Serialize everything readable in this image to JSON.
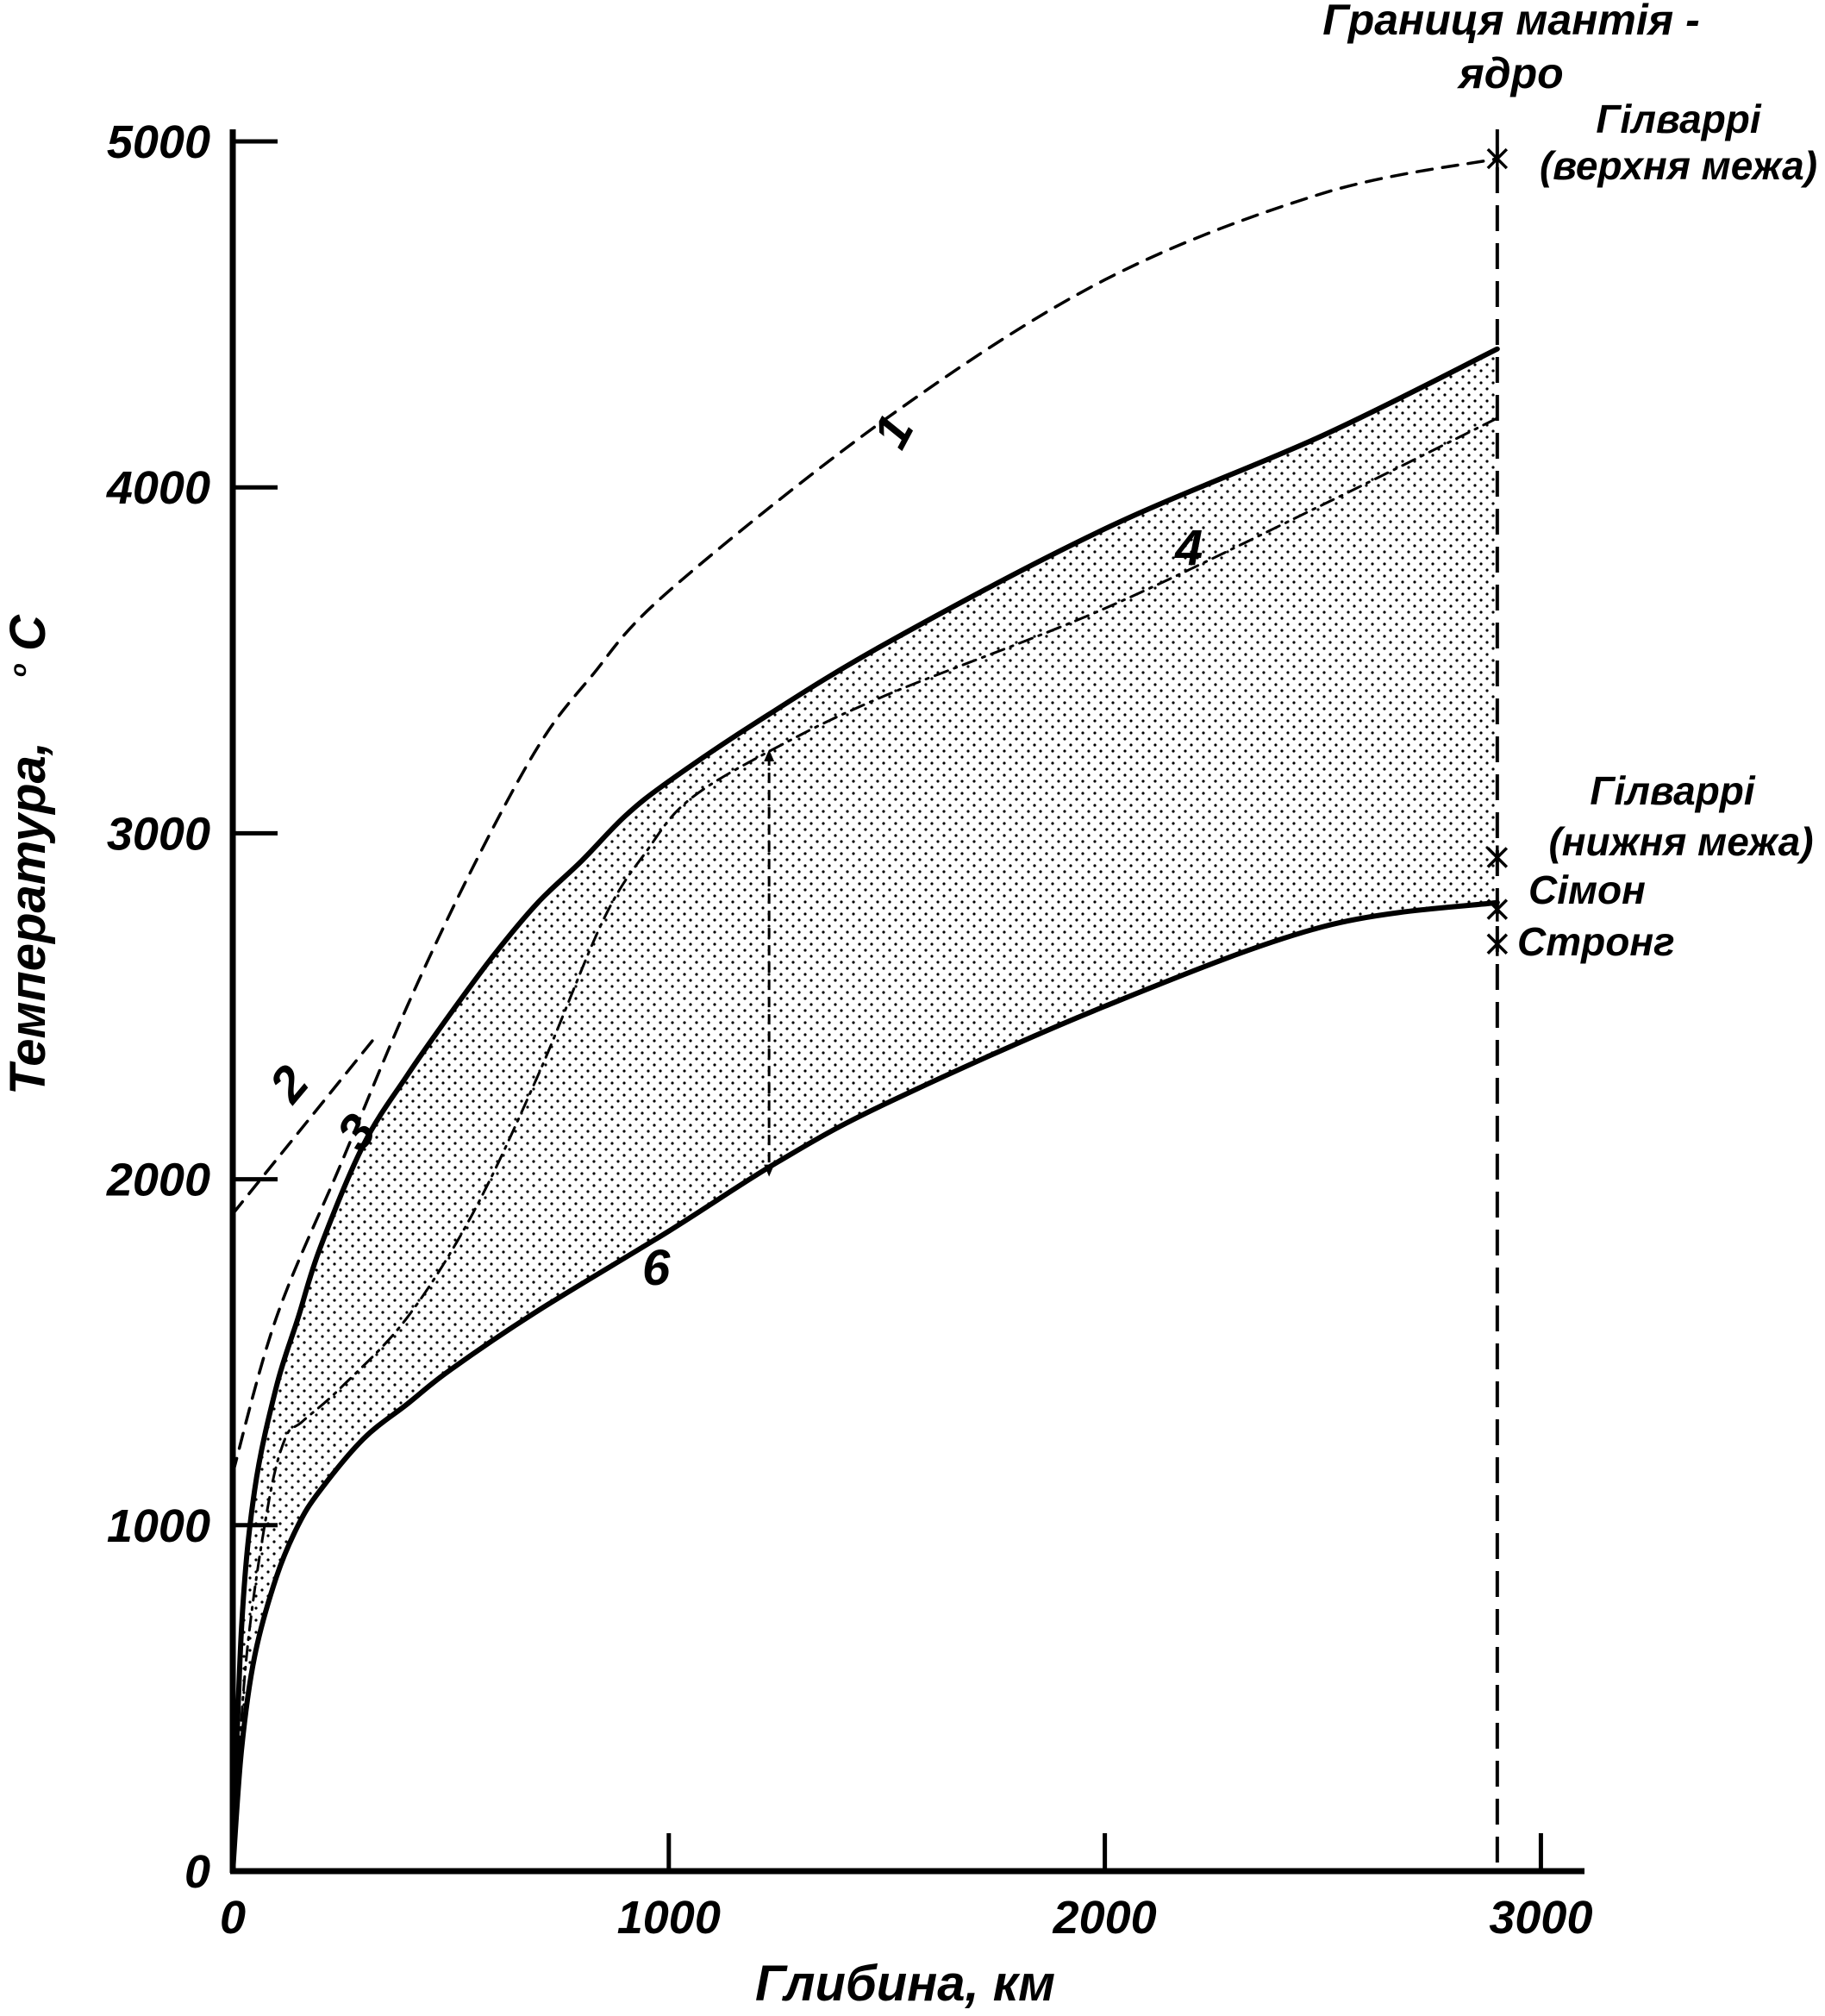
{
  "chart_data": {
    "type": "line",
    "title": "",
    "xlabel": "Глибина, км",
    "ylabel": "Температура, °С",
    "ylabel_main": "Температура,",
    "ylabel_degree": "о",
    "ylabel_unit": "С",
    "xlim": [
      0,
      3100
    ],
    "ylim": [
      0,
      5000
    ],
    "x_ticks": [
      0,
      1000,
      2000,
      3000
    ],
    "x_tick_labels": [
      "0",
      "1000",
      "2000",
      "3000"
    ],
    "y_ticks": [
      0,
      1000,
      2000,
      3000,
      4000,
      5000
    ],
    "y_tick_labels": [
      "0",
      "1000",
      "2000",
      "3000",
      "4000",
      "5000"
    ],
    "grid": false,
    "boundary_depth": 2900,
    "shaded_region": {
      "between": [
        "3",
        "6"
      ]
    },
    "series": [
      {
        "name": "1",
        "style": "dashed",
        "x": [
          0,
          100,
          250,
          400,
          550,
          700,
          820,
          1000,
          1500,
          2000,
          2500,
          2900
        ],
        "y": [
          1150,
          1600,
          2050,
          2500,
          2900,
          3250,
          3450,
          3700,
          4200,
          4600,
          4850,
          4950
        ]
      },
      {
        "name": "2",
        "style": "dashed",
        "x": [
          0,
          320
        ],
        "y": [
          1900,
          2400
        ]
      },
      {
        "name": "3",
        "style": "solid",
        "x": [
          0,
          20,
          50,
          100,
          150,
          200,
          300,
          400,
          500,
          600,
          700,
          800,
          900,
          1000,
          1200,
          1500,
          2000,
          2500,
          2900
        ],
        "y": [
          0,
          700,
          1100,
          1400,
          1600,
          1800,
          2100,
          2300,
          2480,
          2650,
          2800,
          2920,
          3050,
          3150,
          3320,
          3550,
          3880,
          4150,
          4400
        ]
      },
      {
        "name": "4",
        "style": "dashdot",
        "x": [
          0,
          30,
          80,
          120,
          160,
          250,
          400,
          550,
          700,
          850,
          950,
          1050,
          1250,
          1500,
          2000,
          2500,
          2900
        ],
        "y": [
          0,
          600,
          1050,
          1250,
          1300,
          1400,
          1600,
          1900,
          2300,
          2750,
          2950,
          3100,
          3250,
          3400,
          3650,
          3950,
          4200
        ]
      },
      {
        "name": "6",
        "style": "solid",
        "x": [
          0,
          20,
          50,
          100,
          150,
          200,
          300,
          400,
          500,
          700,
          1000,
          1250,
          1500,
          2000,
          2500,
          2900
        ],
        "y": [
          0,
          350,
          620,
          850,
          1000,
          1100,
          1250,
          1350,
          1450,
          1620,
          1850,
          2050,
          2220,
          2500,
          2730,
          2800
        ]
      }
    ],
    "curve_labels": [
      "1",
      "2",
      "3",
      "4",
      "6"
    ],
    "annotations": {
      "boundary_line1": "Границя мантія -",
      "boundary_line2": "ядро",
      "gilvarri_upper_line1": "Гілваррі",
      "gilvarri_upper_line2": "(верхня межа)",
      "gilvarri_lower_line1": "Гілваррі",
      "gilvarri_lower_line2": "(нижня межа)",
      "simon": "Сімон",
      "strong": "Стронг"
    },
    "markers": [
      {
        "label": "Гілваррі (верхня межа)",
        "x": 2900,
        "y": 4950
      },
      {
        "label": "Гілваррі (нижня межа)",
        "x": 2900,
        "y": 2930
      },
      {
        "label": "Сімон",
        "x": 2900,
        "y": 2780
      },
      {
        "label": "Стронг",
        "x": 2900,
        "y": 2680
      }
    ],
    "interval_arrow": {
      "x": 1230,
      "y_top": 3250,
      "y_bottom": 2000
    }
  }
}
